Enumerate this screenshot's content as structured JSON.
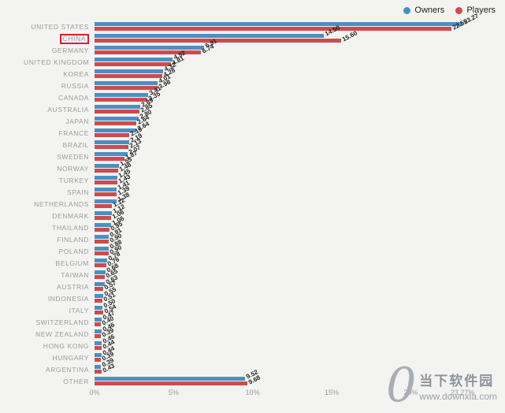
{
  "legend": {
    "owners": "Owners",
    "players": "Players"
  },
  "colors": {
    "owners": "#4a90c2",
    "players": "#cf4a4c",
    "highlight": "#d42222"
  },
  "chart_data": {
    "type": "bar",
    "orientation": "horizontal",
    "title": "",
    "xlabel": "",
    "ylabel": "",
    "xlim": [
      0,
      23.27
    ],
    "x_ticks": [
      "0%",
      "5%",
      "10%",
      "15%",
      "20%",
      "23.27%"
    ],
    "x_tick_values": [
      0,
      5,
      10,
      15,
      20,
      23.27
    ],
    "legend_position": "top-right",
    "grid": false,
    "highlighted_category": "CHINA",
    "categories": [
      "UNITED STATES",
      "CHINA",
      "GERMANY",
      "UNITED KINGDOM",
      "KOREA",
      "RUSSIA",
      "CANADA",
      "AUSTRALIA",
      "JAPAN",
      "FRANCE",
      "BRAZIL",
      "SWEDEN",
      "NORWAY",
      "TURKEY",
      "SPAIN",
      "NETHERLANDS",
      "DENMARK",
      "THAILAND",
      "FINLAND",
      "POLAND",
      "BELGIUM",
      "TAIWAN",
      "AUSTRIA",
      "INDONESIA",
      "ITALY",
      "SWITZERLAND",
      "NEW ZEALAND",
      "HONG KONG",
      "HUNGARY",
      "ARGENTINA",
      "OTHER"
    ],
    "series": [
      {
        "name": "Owners",
        "values": [
          23.27,
          14.5,
          6.91,
          4.92,
          4.32,
          4.01,
          3.41,
          2.89,
          2.8,
          2.64,
          2.19,
          2.07,
          1.55,
          1.45,
          1.41,
          1.38,
          1.12,
          1.06,
          0.91,
          0.88,
          0.78,
          0.68,
          0.63,
          0.55,
          0.5,
          0.47,
          0.46,
          0.46,
          0.44,
          0.39,
          9.52
        ]
      },
      {
        "name": "Players",
        "values": [
          22.59,
          15.6,
          6.74,
          4.81,
          4.28,
          3.98,
          3.35,
          2.85,
          2.64,
          2.19,
          2.13,
          1.87,
          1.48,
          1.43,
          1.39,
          1.12,
          1.06,
          0.95,
          0.9,
          0.9,
          0.76,
          0.65,
          0.57,
          0.51,
          0.54,
          0.4,
          0.39,
          0.44,
          0.39,
          0.43,
          9.68
        ]
      }
    ]
  },
  "watermark": {
    "logo": "0",
    "site_name": "当下软件园",
    "url": "www.downxia.com"
  }
}
